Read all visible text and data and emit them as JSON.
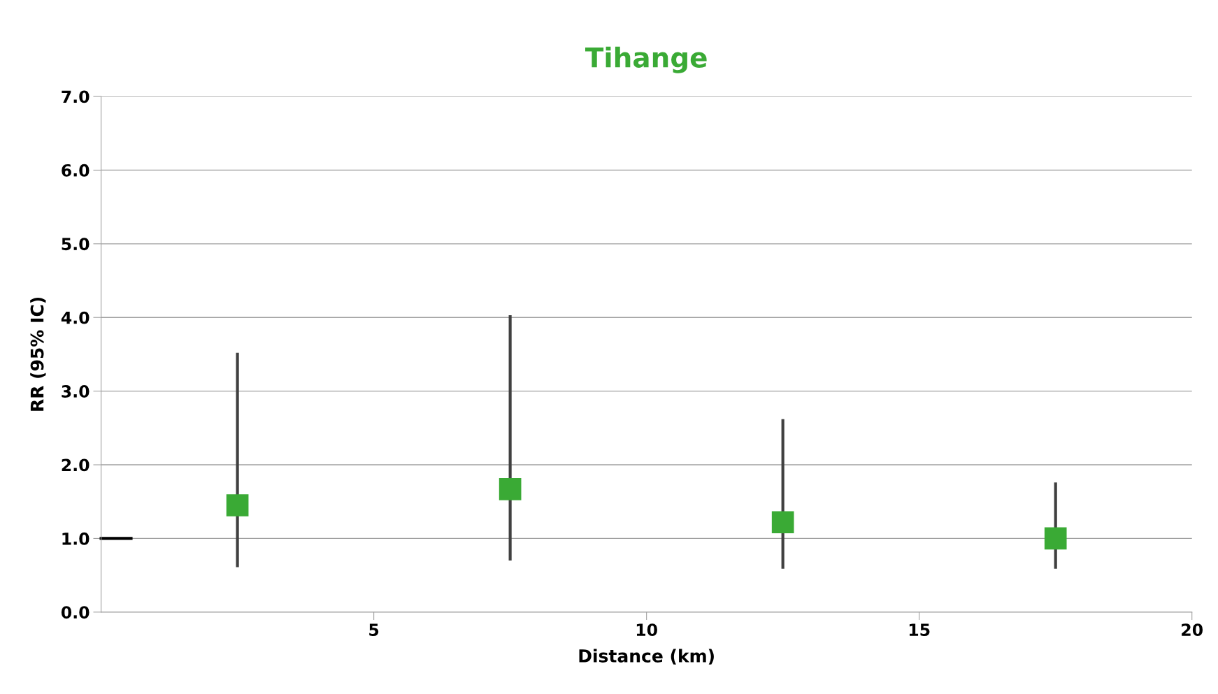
{
  "chart_data": {
    "type": "scatter",
    "title": "Tihange",
    "xlabel": "Distance (km)",
    "ylabel": "RR (95% IC)",
    "xlim": [
      0,
      20
    ],
    "xticks": [
      5,
      10,
      15,
      20
    ],
    "ylim": [
      0,
      7
    ],
    "yticks": [
      {
        "value": 0,
        "label": "0.0"
      },
      {
        "value": 1,
        "label": "1.0"
      },
      {
        "value": 2,
        "label": "2.0"
      },
      {
        "value": 3,
        "label": "3.0"
      },
      {
        "value": 4,
        "label": "4.0"
      },
      {
        "value": 5,
        "label": "5.0"
      },
      {
        "value": 6,
        "label": "6.0"
      },
      {
        "value": 7,
        "label": "7.0"
      }
    ],
    "grid": "y",
    "series": [
      {
        "marker": "square",
        "color": "#3aaa35",
        "x": [
          2.5,
          7.5,
          12.5,
          17.5
        ],
        "values": [
          1.45,
          1.67,
          1.22,
          1.0
        ],
        "errors": [
          [
            0.61,
            3.52
          ],
          [
            0.7,
            4.03
          ],
          [
            0.59,
            2.62
          ],
          [
            0.59,
            1.76
          ]
        ]
      },
      {
        "type": "line",
        "color": "#000000",
        "x": [
          0,
          0.55
        ],
        "values": [
          1.0,
          1.0
        ]
      }
    ]
  }
}
